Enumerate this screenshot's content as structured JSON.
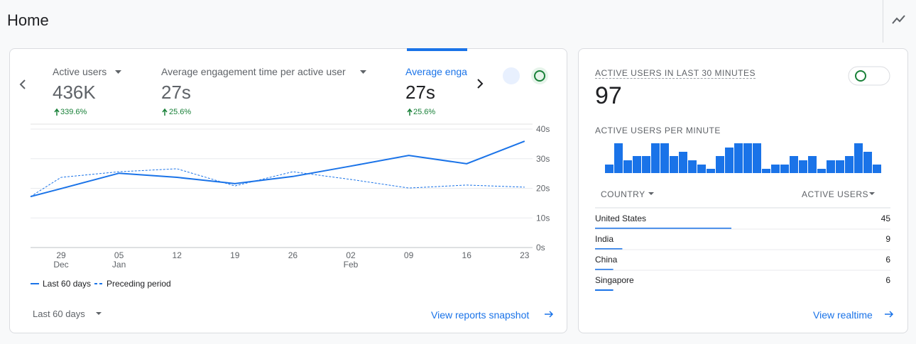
{
  "header": {
    "title": "Home"
  },
  "overview": {
    "metrics": [
      {
        "label": "Active users",
        "value": "436K",
        "change": "339.6%"
      },
      {
        "label": "Average engagement time per active user",
        "value": "27s",
        "change": "25.6%"
      },
      {
        "label": "Average enga",
        "value": "27s",
        "change": "25.6%"
      }
    ],
    "chart_data": {
      "type": "line",
      "categories": [
        null,
        "29",
        "05",
        "12",
        "19",
        "26",
        "02",
        "09",
        "16",
        "23"
      ],
      "months": [
        null,
        "Dec",
        "Jan",
        null,
        null,
        null,
        "Feb",
        null,
        null,
        null
      ],
      "series": [
        {
          "name": "Last 60 days",
          "color": "#1a73e8",
          "dash": false,
          "values": [
            17.2,
            19.9,
            25.1,
            23.7,
            21.6,
            24,
            27.5,
            31.1,
            28.3,
            35.9
          ]
        },
        {
          "name": "Preceding period",
          "color": "#1a73e8",
          "dash": true,
          "values": [
            17.2,
            23.7,
            25.6,
            26.6,
            20.8,
            25.6,
            23.0,
            20.1,
            21.1,
            20.4
          ]
        }
      ],
      "ylim": [
        0,
        40
      ],
      "yticks": [
        {
          "value": 0,
          "label": "0s"
        },
        {
          "value": 10,
          "label": "10s"
        },
        {
          "value": 20,
          "label": "20s"
        },
        {
          "value": 30,
          "label": "30s"
        },
        {
          "value": 40,
          "label": "40s"
        }
      ],
      "grid": true,
      "legend": "bottom-left"
    },
    "range": "Last 60 days",
    "link": "View reports snapshot"
  },
  "realtime": {
    "heading": "ACTIVE USERS IN LAST 30 MINUTES",
    "value": "97",
    "subheading": "ACTIVE USERS PER MINUTE",
    "chart_data": {
      "type": "bar",
      "color": "#1a73e8",
      "values": [
        2,
        7,
        3,
        4,
        4,
        7,
        7,
        4,
        5,
        3,
        2,
        1,
        4,
        6,
        7,
        7,
        7,
        1,
        2,
        2,
        4,
        3,
        4,
        1,
        3,
        3,
        4,
        7,
        5,
        2
      ]
    },
    "table": {
      "columns": [
        "COUNTRY",
        "ACTIVE USERS"
      ],
      "rows": [
        [
          "United States",
          45
        ],
        [
          "India",
          9
        ],
        [
          "China",
          6
        ],
        [
          "Singapore",
          6
        ]
      ]
    },
    "link": "View realtime"
  }
}
